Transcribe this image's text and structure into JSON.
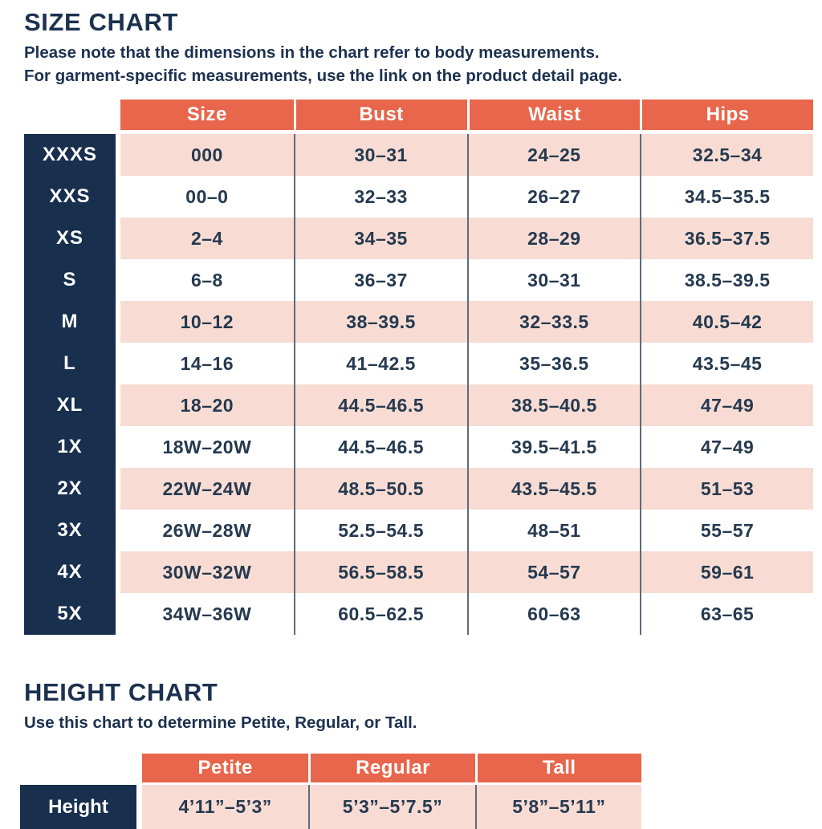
{
  "colors": {
    "accent_orange": "#E8664C",
    "row_pink": "#F8DCD4",
    "navy": "#182F4E",
    "text_navy": "#1C3150",
    "divider_gray": "#5E6B79"
  },
  "size_chart": {
    "title": "SIZE CHART",
    "note_line1": "Please note that the dimensions in the chart refer to body measurements.",
    "note_line2": "For garment-specific measurements, use the link on the product detail page.",
    "columns": [
      "Size",
      "Bust",
      "Waist",
      "Hips"
    ],
    "rows": [
      {
        "label": "XXXS",
        "cells": [
          "000",
          "30–31",
          "24–25",
          "32.5–34"
        ]
      },
      {
        "label": "XXS",
        "cells": [
          "00–0",
          "32–33",
          "26–27",
          "34.5–35.5"
        ]
      },
      {
        "label": "XS",
        "cells": [
          "2–4",
          "34–35",
          "28–29",
          "36.5–37.5"
        ]
      },
      {
        "label": "S",
        "cells": [
          "6–8",
          "36–37",
          "30–31",
          "38.5–39.5"
        ]
      },
      {
        "label": "M",
        "cells": [
          "10–12",
          "38–39.5",
          "32–33.5",
          "40.5–42"
        ]
      },
      {
        "label": "L",
        "cells": [
          "14–16",
          "41–42.5",
          "35–36.5",
          "43.5–45"
        ]
      },
      {
        "label": "XL",
        "cells": [
          "18–20",
          "44.5–46.5",
          "38.5–40.5",
          "47–49"
        ]
      },
      {
        "label": "1X",
        "cells": [
          "18W–20W",
          "44.5–46.5",
          "39.5–41.5",
          "47–49"
        ]
      },
      {
        "label": "2X",
        "cells": [
          "22W–24W",
          "48.5–50.5",
          "43.5–45.5",
          "51–53"
        ]
      },
      {
        "label": "3X",
        "cells": [
          "26W–28W",
          "52.5–54.5",
          "48–51",
          "55–57"
        ]
      },
      {
        "label": "4X",
        "cells": [
          "30W–32W",
          "56.5–58.5",
          "54–57",
          "59–61"
        ]
      },
      {
        "label": "5X",
        "cells": [
          "34W–36W",
          "60.5–62.5",
          "60–63",
          "63–65"
        ]
      }
    ]
  },
  "height_chart": {
    "title": "HEIGHT CHART",
    "note": "Use this chart to determine Petite, Regular, or Tall.",
    "columns": [
      "Petite",
      "Regular",
      "Tall"
    ],
    "row_label": "Height",
    "values": [
      "4’11”–5’3”",
      "5’3”–5’7.5”",
      "5’8”–5’11”"
    ]
  }
}
